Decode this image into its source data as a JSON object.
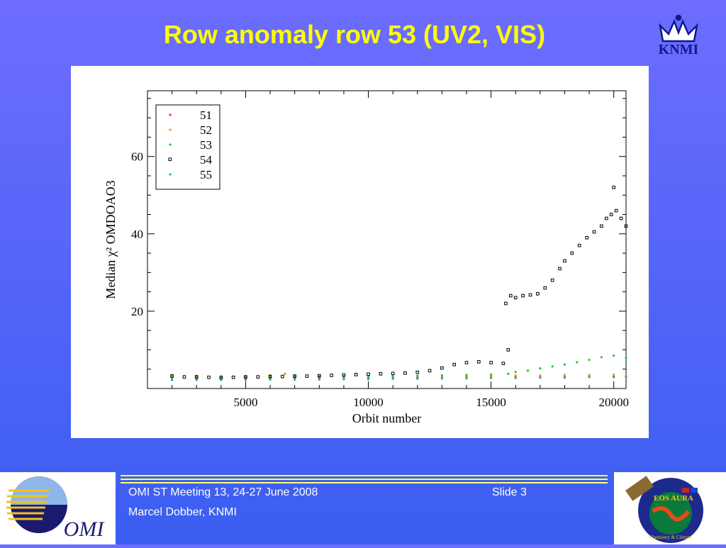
{
  "slide": {
    "title": "Row anomaly row 53 (UV2, VIS)",
    "knmi_logo_text": "KNMI",
    "omi_logo_text": "OMI",
    "footer": {
      "meeting": "OMI ST Meeting 13, 24-27 June 2008",
      "slide_number": "Slide 3",
      "author": "Marcel Dobber, KNMI"
    },
    "eos_logo": {
      "name": "EOS AURA",
      "subtitle": "Chemistry & Climate"
    },
    "colors": {
      "title": "#ffff00",
      "footer_lines": "#ffff66",
      "background_top": "#6d6dff",
      "background_bottom": "#3a5ef0"
    }
  },
  "chart_data": {
    "type": "scatter",
    "xlabel": "Orbit number",
    "ylabel": "Median χ² OMDOAO3",
    "xlim": [
      1000,
      20500
    ],
    "ylim": [
      0,
      77
    ],
    "x_ticks": [
      5000,
      10000,
      15000,
      20000
    ],
    "y_ticks": [
      20,
      40,
      60
    ],
    "legend_position": "top-left",
    "series": [
      {
        "name": "51",
        "color": "#e8351c",
        "marker": "dot",
        "points": [
          [
            2000,
            2.3
          ],
          [
            3000,
            2.3
          ],
          [
            4000,
            2.4
          ],
          [
            5000,
            2.4
          ],
          [
            6000,
            2.5
          ],
          [
            7000,
            2.5
          ],
          [
            8000,
            2.6
          ],
          [
            9000,
            2.6
          ],
          [
            10000,
            2.7
          ],
          [
            11000,
            2.7
          ],
          [
            12000,
            2.8
          ],
          [
            13000,
            2.8
          ],
          [
            14000,
            2.9
          ],
          [
            15000,
            2.9
          ],
          [
            16000,
            3.0
          ],
          [
            17000,
            3.0
          ],
          [
            18000,
            3.0
          ],
          [
            19000,
            3.1
          ],
          [
            20000,
            3.1
          ],
          [
            20500,
            3.1
          ]
        ]
      },
      {
        "name": "52",
        "color": "#ff8c1a",
        "marker": "dot",
        "points": [
          [
            2000,
            3.5
          ],
          [
            3000,
            3.3
          ],
          [
            4000,
            3.2
          ],
          [
            5000,
            3.2
          ],
          [
            6000,
            3.4
          ],
          [
            6600,
            3.8
          ],
          [
            7000,
            3.3
          ],
          [
            8000,
            3.2
          ],
          [
            9000,
            3.2
          ],
          [
            10000,
            3.2
          ],
          [
            11000,
            3.2
          ],
          [
            12000,
            3.3
          ],
          [
            13000,
            3.3
          ],
          [
            14000,
            3.3
          ],
          [
            15000,
            3.3
          ],
          [
            16000,
            3.4
          ],
          [
            17000,
            3.4
          ],
          [
            18000,
            3.5
          ],
          [
            19000,
            3.5
          ],
          [
            20000,
            3.6
          ],
          [
            20500,
            3.6
          ]
        ]
      },
      {
        "name": "53",
        "color": "#22cc22",
        "marker": "dot",
        "points": [
          [
            2000,
            2.9
          ],
          [
            3000,
            2.8
          ],
          [
            4000,
            2.8
          ],
          [
            5000,
            2.9
          ],
          [
            6000,
            2.9
          ],
          [
            7000,
            3.0
          ],
          [
            8000,
            3.0
          ],
          [
            9000,
            3.1
          ],
          [
            10000,
            3.1
          ],
          [
            11000,
            3.2
          ],
          [
            12000,
            3.3
          ],
          [
            13000,
            3.4
          ],
          [
            14000,
            3.5
          ],
          [
            15000,
            3.6
          ],
          [
            15700,
            3.8
          ],
          [
            16000,
            4.3
          ],
          [
            16500,
            4.6
          ],
          [
            17000,
            5.2
          ],
          [
            17500,
            5.7
          ],
          [
            18000,
            6.2
          ],
          [
            18500,
            6.8
          ],
          [
            19000,
            7.4
          ],
          [
            19500,
            8.1
          ],
          [
            20000,
            8.5
          ],
          [
            20500,
            7.9
          ]
        ]
      },
      {
        "name": "54",
        "color": "#000000",
        "marker": "square",
        "points": [
          [
            2000,
            3.2
          ],
          [
            2500,
            3.0
          ],
          [
            3000,
            3.0
          ],
          [
            3500,
            2.9
          ],
          [
            4000,
            2.8
          ],
          [
            4500,
            2.9
          ],
          [
            5000,
            3.0
          ],
          [
            5500,
            3.0
          ],
          [
            6000,
            3.1
          ],
          [
            6500,
            3.1
          ],
          [
            7000,
            3.2
          ],
          [
            7500,
            3.2
          ],
          [
            8000,
            3.3
          ],
          [
            8500,
            3.4
          ],
          [
            9000,
            3.5
          ],
          [
            9500,
            3.6
          ],
          [
            10000,
            3.7
          ],
          [
            10500,
            3.8
          ],
          [
            11000,
            3.9
          ],
          [
            11500,
            4.0
          ],
          [
            12000,
            4.2
          ],
          [
            12500,
            4.6
          ],
          [
            13000,
            5.3
          ],
          [
            13500,
            6.2
          ],
          [
            14000,
            6.7
          ],
          [
            14500,
            6.9
          ],
          [
            15000,
            6.7
          ],
          [
            15500,
            6.5
          ],
          [
            15600,
            22.0
          ],
          [
            15700,
            10.0
          ],
          [
            15800,
            24.0
          ],
          [
            16000,
            23.5
          ],
          [
            16300,
            24.0
          ],
          [
            16600,
            24.2
          ],
          [
            16900,
            24.5
          ],
          [
            17200,
            26.0
          ],
          [
            17500,
            28.0
          ],
          [
            17800,
            31.0
          ],
          [
            18000,
            33.0
          ],
          [
            18300,
            35.0
          ],
          [
            18600,
            37.0
          ],
          [
            18900,
            39.0
          ],
          [
            19200,
            40.5
          ],
          [
            19500,
            42.0
          ],
          [
            19700,
            44.0
          ],
          [
            19900,
            45.0
          ],
          [
            20000,
            52.0
          ],
          [
            20100,
            46.0
          ],
          [
            20300,
            44.0
          ],
          [
            20500,
            42.0
          ]
        ]
      },
      {
        "name": "55",
        "color": "#1ab0c8",
        "marker": "dot",
        "points": [
          [
            2000,
            2.2
          ],
          [
            3000,
            2.2
          ],
          [
            4000,
            2.2
          ],
          [
            5000,
            2.2
          ],
          [
            6000,
            2.3
          ],
          [
            7000,
            2.3
          ],
          [
            8000,
            2.3
          ],
          [
            9000,
            2.4
          ],
          [
            10000,
            2.4
          ],
          [
            11000,
            2.5
          ],
          [
            12000,
            2.5
          ],
          [
            13000,
            2.6
          ],
          [
            14000,
            2.6
          ],
          [
            15000,
            2.7
          ],
          [
            16000,
            2.7
          ],
          [
            17000,
            2.8
          ],
          [
            18000,
            2.8
          ],
          [
            19000,
            2.9
          ],
          [
            20000,
            2.9
          ],
          [
            20500,
            3.0
          ]
        ]
      }
    ]
  }
}
